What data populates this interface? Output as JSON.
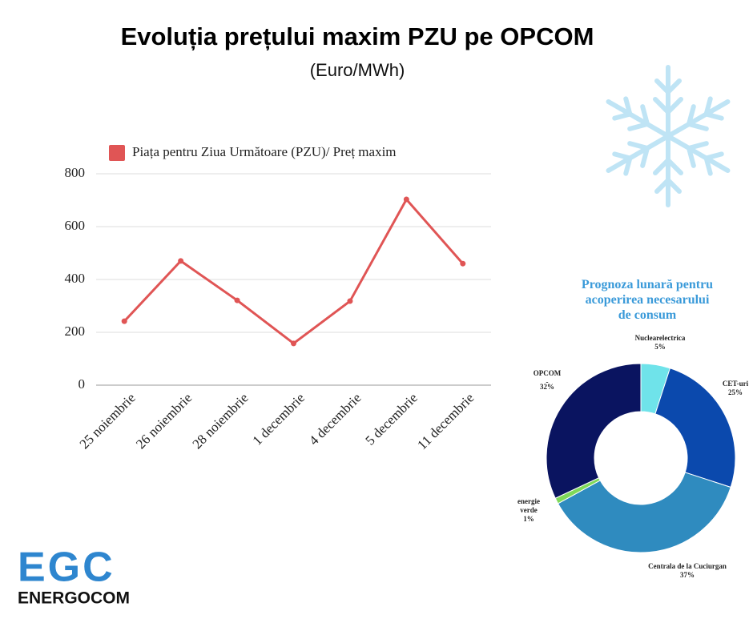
{
  "chart_data": [
    {
      "type": "line",
      "title": "Evoluția prețului maxim PZU pe OPCOM",
      "subtitle": "(Euro/MWh)",
      "categories": [
        "25 noiembrie",
        "26 noiembrie",
        "28 noiembrie",
        "1 decembrie",
        "4 decembrie",
        "5 decembrie",
        "11 decembrie"
      ],
      "series": [
        {
          "name": "Piața pentru Ziua Următoare (PZU)/ Preț maxim",
          "color": "#e05555",
          "values": [
            242,
            470,
            321,
            158,
            318,
            703,
            460
          ]
        }
      ],
      "ylim": [
        0,
        800
      ],
      "yticks": [
        0,
        200,
        400,
        600,
        800
      ],
      "grid": true,
      "legend": "top"
    },
    {
      "type": "donut",
      "title": "Prognoza lunară pentru acoperirea necesarului de consum",
      "categories": [
        "Nuclearelectrica",
        "CET-uri",
        "Centrala de la Cuciurgan",
        "energie verde",
        "OPCOM -"
      ],
      "values": [
        5,
        25,
        37,
        1,
        32
      ],
      "value_labels": [
        "5%",
        "25%",
        "37%",
        "1%",
        "32%"
      ],
      "colors": [
        "#6fe3ea",
        "#0b49ad",
        "#2f8bbf",
        "#7fd95a",
        "#0a1460"
      ]
    }
  ],
  "logo": {
    "mark": "EGC",
    "name": "ENERGOCOM"
  }
}
